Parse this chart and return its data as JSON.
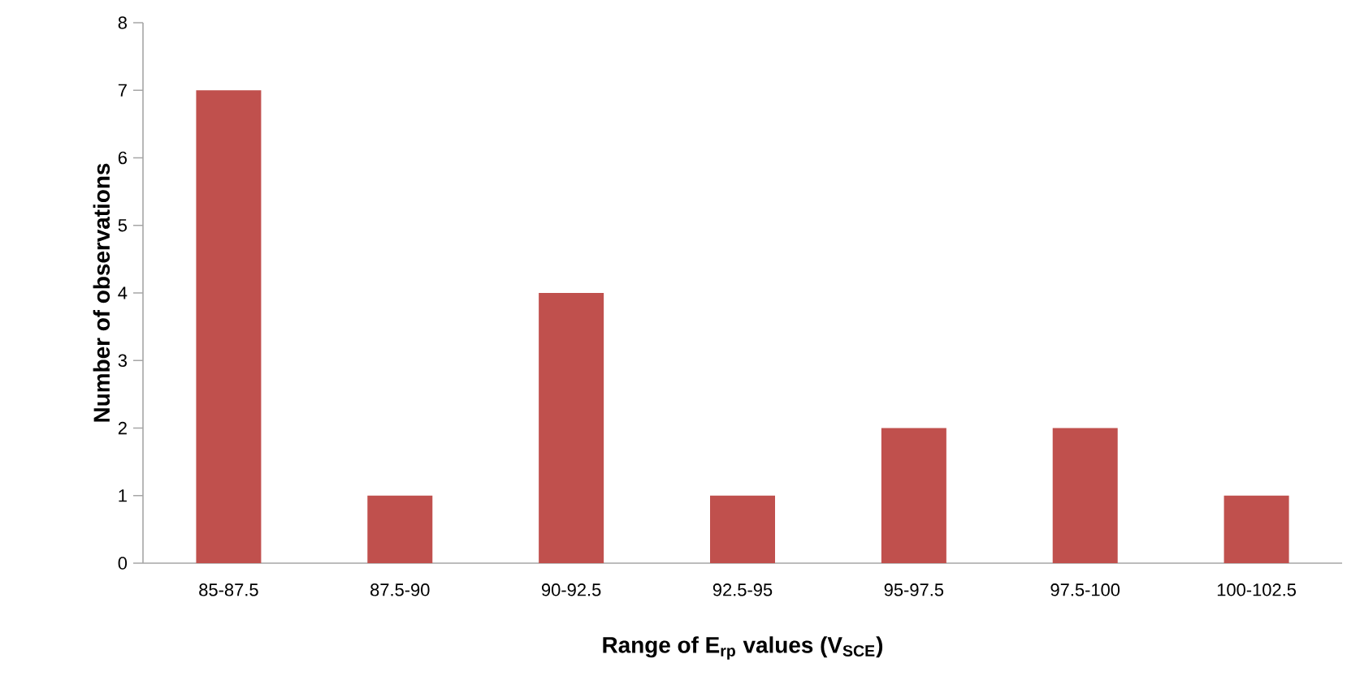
{
  "chart_data": {
    "type": "bar",
    "xlabel": "Range of E$_{rp}$ values (V$_{SCE}$)",
    "ylabel": "Number of observations",
    "categories": [
      "85-87.5",
      "87.5-90",
      "90-92.5",
      "92.5-95",
      "95-97.5",
      "97.5-100",
      "100-102.5"
    ],
    "values": [
      7,
      1,
      4,
      1,
      2,
      2,
      1
    ],
    "color": "#c0504d",
    "ylim": [
      0,
      8
    ],
    "yticks": [
      0,
      1,
      2,
      3,
      4,
      5,
      6,
      7,
      8
    ]
  }
}
